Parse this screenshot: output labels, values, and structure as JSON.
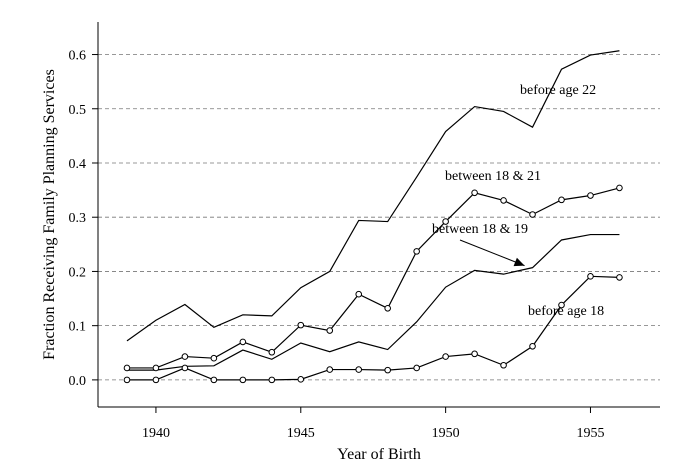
{
  "chart_data": {
    "type": "line",
    "title": "",
    "xlabel": "Year of Birth",
    "ylabel": "Fraction Receiving Family Planning Services",
    "xlim": [
      1938,
      1957.4
    ],
    "ylim": [
      -0.05,
      0.66
    ],
    "xticks": [
      1940,
      1945,
      1950,
      1955
    ],
    "xtick_labels": [
      "1940",
      "1945",
      "1950",
      "1955"
    ],
    "yticks": [
      0.0,
      0.1,
      0.2,
      0.3,
      0.4,
      0.5,
      0.6
    ],
    "ytick_labels": [
      "0.0",
      "0.1",
      "0.2",
      "0.3",
      "0.4",
      "0.5",
      "0.6"
    ],
    "grid": "horizontal-dashed",
    "x": [
      1939,
      1940,
      1941,
      1942,
      1943,
      1944,
      1945,
      1946,
      1947,
      1948,
      1949,
      1950,
      1951,
      1952,
      1953,
      1954,
      1955,
      1956
    ],
    "series": [
      {
        "name": "before age 22",
        "markers": false,
        "values": [
          0.072,
          0.11,
          0.139,
          0.097,
          0.12,
          0.118,
          0.17,
          0.2,
          0.294,
          0.292,
          0.374,
          0.458,
          0.504,
          0.495,
          0.466,
          0.573,
          0.599,
          0.607
        ]
      },
      {
        "name": "between 18 & 21",
        "markers": true,
        "values": [
          0.022,
          0.022,
          0.043,
          0.04,
          0.07,
          0.051,
          0.101,
          0.091,
          0.158,
          0.132,
          0.237,
          0.292,
          0.345,
          0.331,
          0.305,
          0.332,
          0.34,
          0.354
        ]
      },
      {
        "name": "between 18 & 19",
        "markers": false,
        "values": [
          0.018,
          0.018,
          0.025,
          0.026,
          0.055,
          0.038,
          0.068,
          0.052,
          0.07,
          0.056,
          0.107,
          0.171,
          0.202,
          0.195,
          0.207,
          0.258,
          0.268,
          0.268
        ]
      },
      {
        "name": "before age 18",
        "markers": true,
        "values": [
          0.0,
          0.0,
          0.022,
          0.0,
          0.0,
          0.0,
          0.001,
          0.019,
          0.019,
          0.018,
          0.022,
          0.043,
          0.048,
          0.027,
          0.062,
          0.138,
          0.191,
          0.189
        ]
      }
    ],
    "annotations": [
      {
        "text": "before age 22",
        "series": 0
      },
      {
        "text": "between 18 & 21",
        "series": 1
      },
      {
        "text": "between 18 & 19",
        "series": 2,
        "arrow": true
      },
      {
        "text": "before age 18",
        "series": 3
      }
    ]
  }
}
